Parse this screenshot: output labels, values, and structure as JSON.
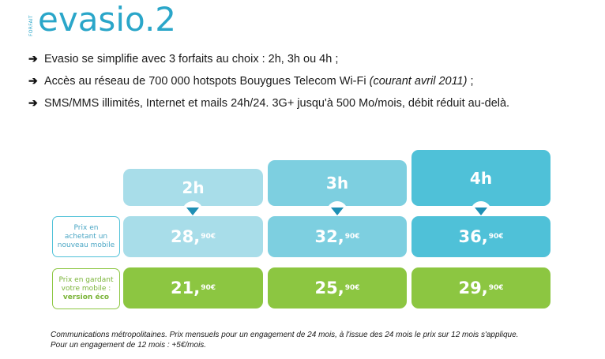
{
  "logo": {
    "tag": "FORFAIT",
    "wordmark": "evasio.2"
  },
  "bullets": [
    {
      "text": "Evasio se simplifie avec 3 forfaits au choix : 2h, 3h ou 4h ;"
    },
    {
      "text": "Accès au réseau de 700 000 hotspots Bouygues Telecom Wi-Fi ",
      "italic": "(courant avril 2011)",
      "after": " ;"
    },
    {
      "text": "SMS/MMS illimités, Internet et mails 24h/24. 3G+ jusqu'à 500 Mo/mois, débit réduit au-delà."
    }
  ],
  "plans": [
    {
      "name": "2h",
      "price_new_main": "28,",
      "price_new_cents": "90€",
      "price_keep_main": "21,",
      "price_keep_cents": "90€"
    },
    {
      "name": "3h",
      "price_new_main": "32,",
      "price_new_cents": "90€",
      "price_keep_main": "25,",
      "price_keep_cents": "90€"
    },
    {
      "name": "4h",
      "price_new_main": "36,",
      "price_new_cents": "90€",
      "price_keep_main": "29,",
      "price_keep_cents": "90€"
    }
  ],
  "row_labels": {
    "new_mobile": [
      "Prix en",
      "achetant un",
      "nouveau mobile"
    ],
    "keep_mobile": [
      "Prix en gardant",
      "votre mobile :",
      "version éco"
    ]
  },
  "colors": {
    "plan_2h": "#a8dde9",
    "plan_3h": "#7dcfe0",
    "plan_4h": "#4fc1d8",
    "eco_green": "#8cc641",
    "brand_blue": "#2aa6c9"
  },
  "footnote": [
    "Communications  métropolitaines. Prix mensuels pour un engagement de 24 mois, à l'issue des 24 mois le prix sur 12 mois s'applique.",
    "Pour un engagement de 12 mois : +5€/mois."
  ]
}
